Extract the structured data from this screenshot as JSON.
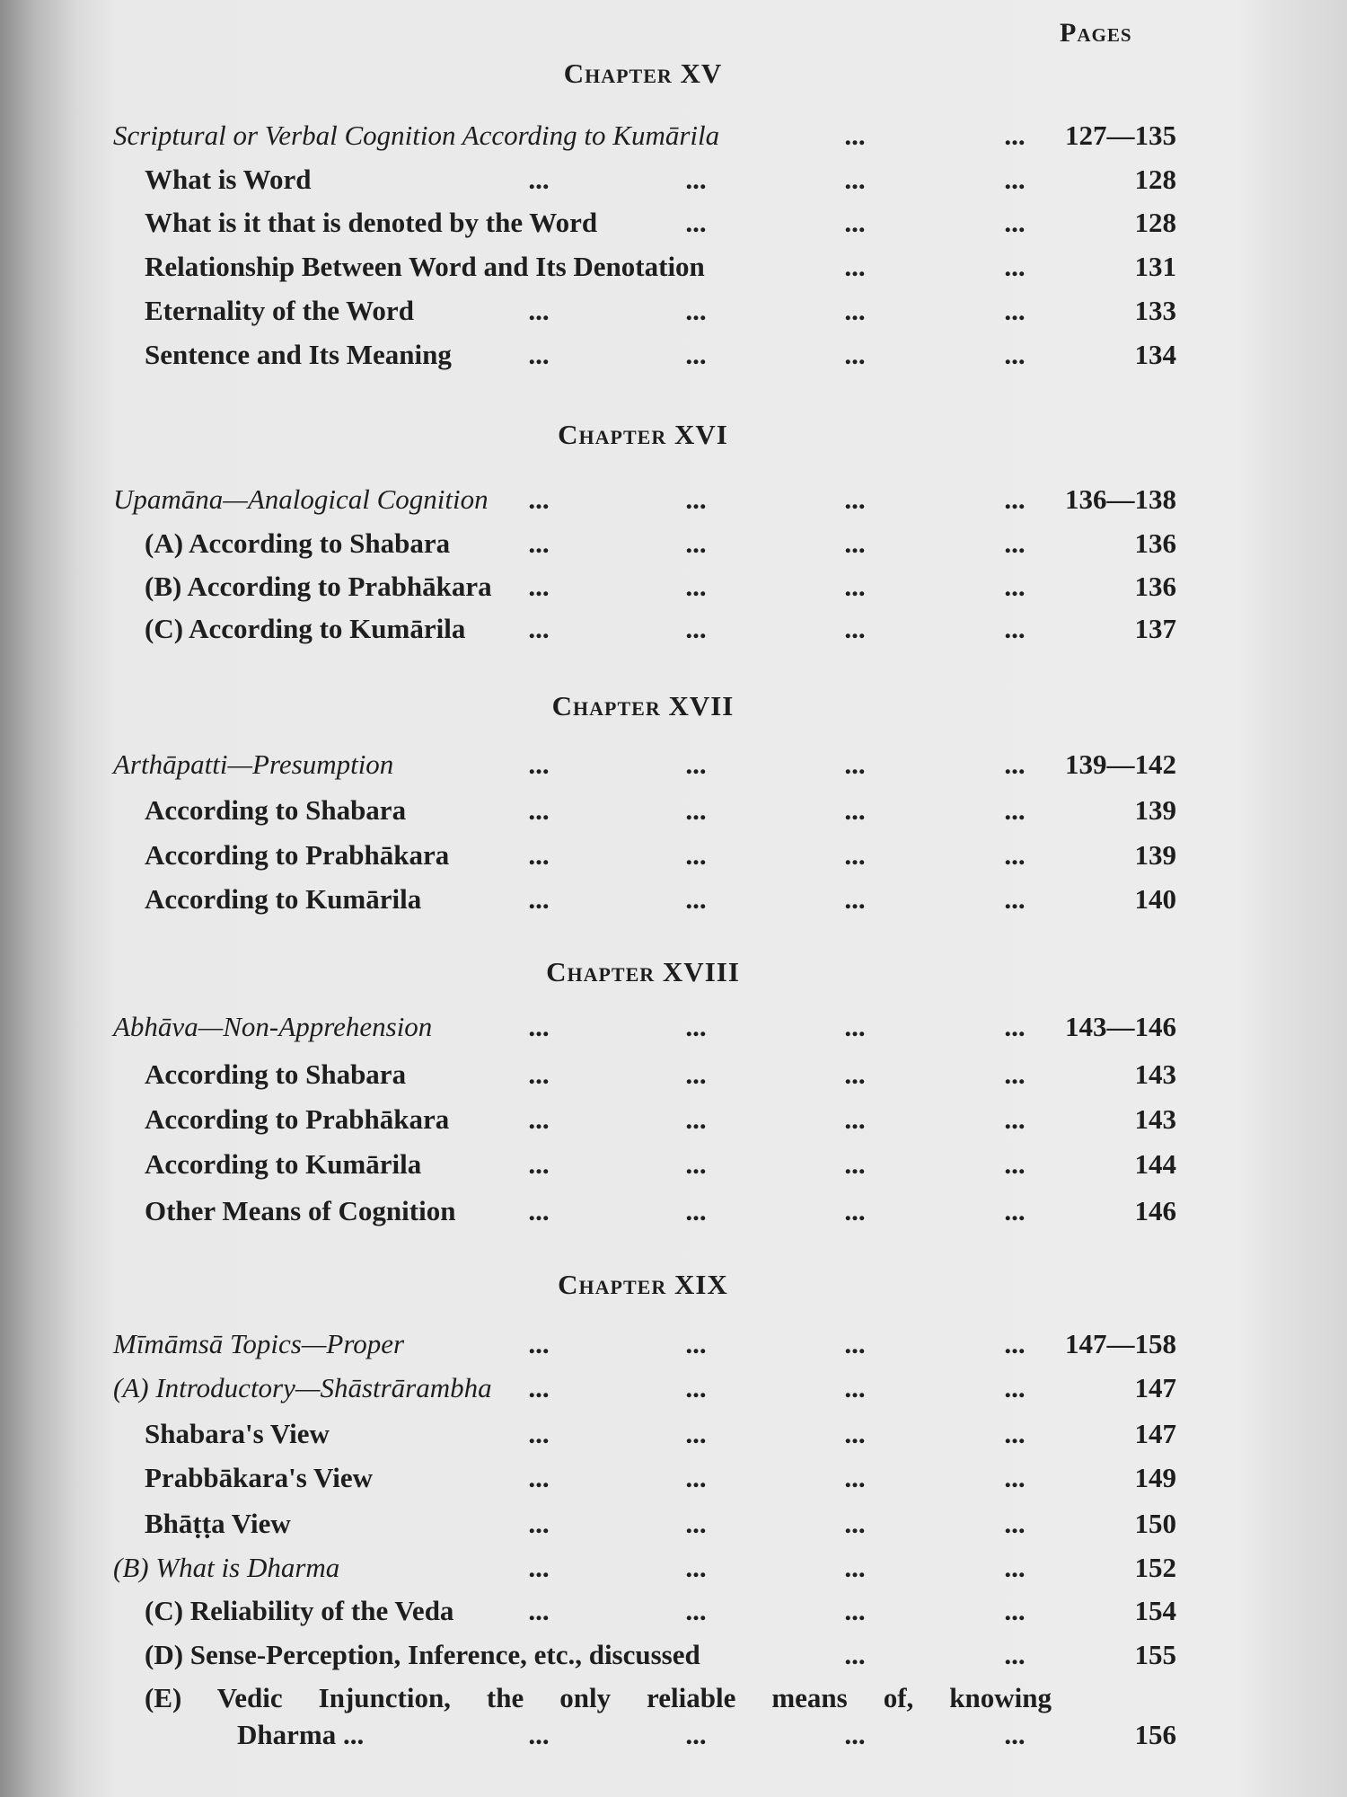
{
  "pages_heading": "Pages",
  "leader": "...",
  "chapters": [
    {
      "title": "Chapter XV",
      "entries": [
        {
          "label": "Scriptural or Verbal Cognition According to Kumārila",
          "page": "127—135",
          "italic": true,
          "level": 0
        },
        {
          "label": "What is Word",
          "page": "128",
          "level": 1
        },
        {
          "label": "What is it that is denoted by the Word",
          "page": "128",
          "level": 1
        },
        {
          "label": "Relationship Between Word and Its Denotation",
          "page": "131",
          "level": 1
        },
        {
          "label": "Eternality of the Word",
          "page": "133",
          "level": 1
        },
        {
          "label": "Sentence and Its Meaning",
          "page": "134",
          "level": 1
        }
      ]
    },
    {
      "title": "Chapter XVI",
      "entries": [
        {
          "label": "Upamāna—Analogical Cognition",
          "page": "136—138",
          "italic": true,
          "level": 0
        },
        {
          "label": "(A) According to Shabara",
          "page": "136",
          "level": 1
        },
        {
          "label": "(B) According to Prabhākara",
          "page": "136",
          "level": 1
        },
        {
          "label": "(C) According to Kumārila",
          "page": "137",
          "level": 1
        }
      ]
    },
    {
      "title": "Chapter XVII",
      "entries": [
        {
          "label": "Arthāpatti—Presumption",
          "page": "139—142",
          "italic": true,
          "level": 0
        },
        {
          "label": "According to Shabara",
          "page": "139",
          "level": 1
        },
        {
          "label": "According to Prabhākara",
          "page": "139",
          "level": 1
        },
        {
          "label": "According to Kumārila",
          "page": "140",
          "level": 1
        }
      ]
    },
    {
      "title": "Chapter XVIII",
      "entries": [
        {
          "label": "Abhāva—Non-Apprehension",
          "page": "143—146",
          "italic": true,
          "level": 0
        },
        {
          "label": "According to Shabara",
          "page": "143",
          "level": 1
        },
        {
          "label": "According to Prabhākara",
          "page": "143",
          "level": 1
        },
        {
          "label": "According to Kumārila",
          "page": "144",
          "level": 1
        },
        {
          "label": "Other Means of Cognition",
          "page": "146",
          "level": 1
        }
      ]
    },
    {
      "title": "Chapter XIX",
      "entries": [
        {
          "label": "Mīmāmsā Topics—Proper",
          "page": "147—158",
          "italic": true,
          "level": 0
        },
        {
          "label": "(A) Introductory—Shāstrārambha",
          "page": "147",
          "italic": true,
          "level": 0
        },
        {
          "label": "Shabara's View",
          "page": "147",
          "level": 1
        },
        {
          "label": "Prabbākara's View",
          "page": "149",
          "level": 1
        },
        {
          "label": "Bhāṭṭa View",
          "page": "150",
          "level": 1
        },
        {
          "label": "(B) What is Dharma",
          "page": "152",
          "italic": true,
          "level": 0
        },
        {
          "label": "(C) Reliability of the Veda",
          "page": "154",
          "level": 1
        },
        {
          "label": "(D) Sense-Perception, Inference, etc., discussed",
          "page": "155",
          "level": 1
        },
        {
          "label": "(E) Vedic Injunction, the only reliable means of, knowing",
          "continuation": "Dharma ...",
          "page": "156",
          "level": 1
        }
      ]
    }
  ]
}
